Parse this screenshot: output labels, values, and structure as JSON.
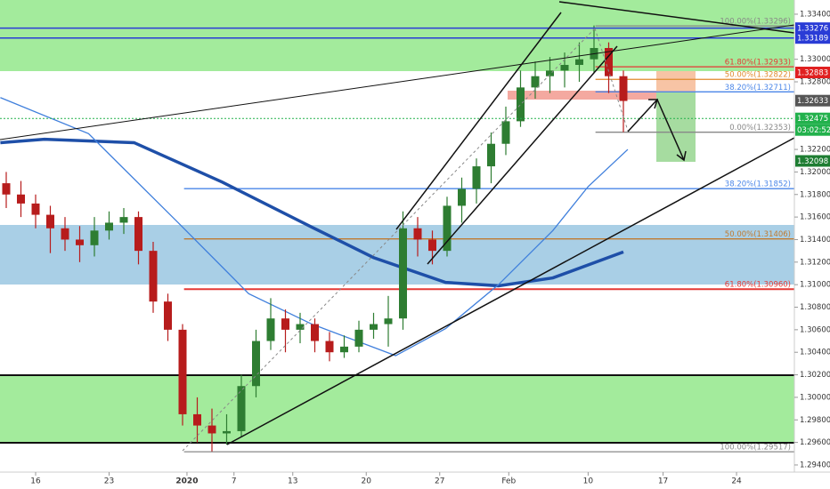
{
  "chart_data": {
    "type": "candlestick",
    "xlim": [
      -2.4242,
      51.6364
    ],
    "ylim": [
      1.29305,
      1.33526
    ],
    "xticks": [
      {
        "value": 0,
        "label": "16"
      },
      {
        "value": 5,
        "label": "23"
      },
      {
        "value": 10.3,
        "label": "2020"
      },
      {
        "value": 13.5,
        "label": "7"
      },
      {
        "value": 17.5,
        "label": "13"
      },
      {
        "value": 22.5,
        "label": "20"
      },
      {
        "value": 27.5,
        "label": "27"
      },
      {
        "value": 32.2,
        "label": "Feb"
      },
      {
        "value": 37.6,
        "label": "10"
      },
      {
        "value": 42.7,
        "label": "17"
      },
      {
        "value": 47.7,
        "label": "24"
      }
    ],
    "yticks": [
      {
        "value": 1.334,
        "label": "1.33400"
      },
      {
        "value": 1.33,
        "label": "1.33000"
      },
      {
        "value": 1.328,
        "label": "1.32800"
      },
      {
        "value": 1.322,
        "label": "1.32200"
      },
      {
        "value": 1.32,
        "label": "1.32000"
      },
      {
        "value": 1.318,
        "label": "1.31800"
      },
      {
        "value": 1.316,
        "label": "1.31600"
      },
      {
        "value": 1.314,
        "label": "1.31400"
      },
      {
        "value": 1.312,
        "label": "1.31200"
      },
      {
        "value": 1.31,
        "label": "1.31000"
      },
      {
        "value": 1.308,
        "label": "1.30800"
      },
      {
        "value": 1.306,
        "label": "1.30600"
      },
      {
        "value": 1.304,
        "label": "1.30400"
      },
      {
        "value": 1.302,
        "label": "1.30200"
      },
      {
        "value": 1.3,
        "label": "1.30000"
      },
      {
        "value": 1.298,
        "label": "1.29800"
      },
      {
        "value": 1.296,
        "label": "1.29600"
      },
      {
        "value": 1.294,
        "label": "1.29400"
      }
    ],
    "up_color": "#2e7d32",
    "down_color": "#b71c1c",
    "candles": {
      "x": [
        -2,
        -1,
        0,
        1,
        2,
        3,
        4,
        5,
        6,
        7,
        8,
        9,
        10,
        11,
        12,
        13,
        14,
        15,
        16,
        17,
        18,
        19,
        20,
        21,
        22,
        23,
        24,
        25,
        26,
        27,
        28,
        29,
        30,
        31,
        32,
        33,
        34,
        35,
        36,
        37,
        38,
        39,
        40
      ],
      "open": [
        1.319,
        1.318,
        1.3172,
        1.3162,
        1.315,
        1.314,
        1.3135,
        1.3148,
        1.3155,
        1.316,
        1.313,
        1.3085,
        1.306,
        1.2985,
        1.2975,
        1.2968,
        1.297,
        1.301,
        1.305,
        1.307,
        1.306,
        1.3065,
        1.305,
        1.304,
        1.3045,
        1.306,
        1.3065,
        1.307,
        1.315,
        1.314,
        1.313,
        1.317,
        1.3185,
        1.3205,
        1.3225,
        1.3245,
        1.3275,
        1.3285,
        1.329,
        1.3295,
        1.33,
        1.331,
        1.3285
      ],
      "high": [
        1.32,
        1.3192,
        1.318,
        1.317,
        1.316,
        1.3152,
        1.316,
        1.3165,
        1.3168,
        1.3165,
        1.3138,
        1.3092,
        1.3065,
        1.3,
        1.299,
        1.2985,
        1.302,
        1.306,
        1.3088,
        1.3078,
        1.3075,
        1.307,
        1.3058,
        1.3055,
        1.3068,
        1.3075,
        1.309,
        1.3165,
        1.316,
        1.3148,
        1.3178,
        1.3195,
        1.3212,
        1.3235,
        1.3258,
        1.329,
        1.3298,
        1.3302,
        1.3306,
        1.3315,
        1.333,
        1.3315,
        1.329
      ],
      "low": [
        1.3168,
        1.316,
        1.315,
        1.3128,
        1.313,
        1.312,
        1.3125,
        1.314,
        1.3145,
        1.3118,
        1.3075,
        1.305,
        1.2975,
        1.296,
        1.2952,
        1.2958,
        1.2965,
        1.3,
        1.3042,
        1.304,
        1.3048,
        1.304,
        1.3032,
        1.3035,
        1.304,
        1.3052,
        1.3045,
        1.306,
        1.3125,
        1.3118,
        1.3125,
        1.3155,
        1.3172,
        1.319,
        1.3215,
        1.324,
        1.3265,
        1.327,
        1.3275,
        1.328,
        1.3288,
        1.327,
        1.32353
      ],
      "close": [
        1.318,
        1.3172,
        1.3162,
        1.315,
        1.314,
        1.3135,
        1.3148,
        1.3155,
        1.316,
        1.313,
        1.3085,
        1.306,
        1.2985,
        1.2975,
        1.2968,
        1.297,
        1.301,
        1.305,
        1.307,
        1.306,
        1.3065,
        1.305,
        1.304,
        1.3045,
        1.306,
        1.3065,
        1.307,
        1.315,
        1.314,
        1.313,
        1.317,
        1.3185,
        1.3205,
        1.3225,
        1.3245,
        1.3275,
        1.3285,
        1.329,
        1.3295,
        1.33,
        1.331,
        1.3285,
        1.3263
      ]
    },
    "lines": [
      {
        "color": "#1e4fa8",
        "width": 3.5,
        "x": [
          -2.4,
          0.6,
          6.7,
          12.7,
          18.8,
          23,
          27.9,
          31.5,
          35.2,
          40
        ],
        "values": [
          1.3226,
          1.3229,
          1.3226,
          1.3191,
          1.3151,
          1.3124,
          1.3102,
          1.3099,
          1.3106,
          1.3129
        ]
      },
      {
        "color": "#3f7fdc",
        "width": 1.3,
        "x": [
          -2.4,
          3.6,
          9.7,
          14.5,
          18.8,
          24.5,
          27.9,
          31.5,
          35.2,
          37.6,
          40.3
        ],
        "values": [
          1.3266,
          1.3234,
          1.3155,
          1.3092,
          1.3065,
          1.3037,
          1.3061,
          1.31,
          1.3148,
          1.3187,
          1.322
        ]
      }
    ],
    "levels": [
      {
        "label": "100.00%(1.33296)",
        "value": 1.33296,
        "color": "#888888",
        "x_start": 38.1
      },
      {
        "label": "61.80%(1.32933)",
        "value": 1.32933,
        "color": "#e53935",
        "x_start": 38.1
      },
      {
        "label": "50.00%(1.32822)",
        "value": 1.32822,
        "color": "#e08a2c",
        "x_start": 38.1
      },
      {
        "label": "38.20%(1.32711)",
        "value": 1.32711,
        "color": "#4a86e8",
        "x_start": 38.1
      },
      {
        "label": "0.00%(1.32353)",
        "value": 1.32353,
        "color": "#888888",
        "x_start": 38.1
      },
      {
        "label": "38.20%(1.31852)",
        "value": 1.31852,
        "color": "#4a86e8",
        "x_start": 10.1
      },
      {
        "label": "50.00%(1.31406)",
        "value": 1.31406,
        "color": "#c07a30",
        "x_start": 10.1
      },
      {
        "label": "61.80%(1.30960)",
        "value": 1.3096,
        "color": "#e53935",
        "x_start": 10.1
      },
      {
        "label": "100.00%(1.29517)",
        "value": 1.29517,
        "color": "#888888",
        "x_start": 10.1
      }
    ],
    "price_tags": [
      {
        "value": 1.33276,
        "color": "#2a3cd6"
      },
      {
        "value": 1.33189,
        "color": "#2a3cd6"
      },
      {
        "value": 1.32883,
        "color": "#e02020"
      },
      {
        "value": 1.32633,
        "color": "#555555"
      },
      {
        "value": 1.32475,
        "color": "#22b14c"
      },
      {
        "value": 1.32098,
        "color": "#1e7d32"
      }
    ],
    "countdown": "03:02:52"
  }
}
